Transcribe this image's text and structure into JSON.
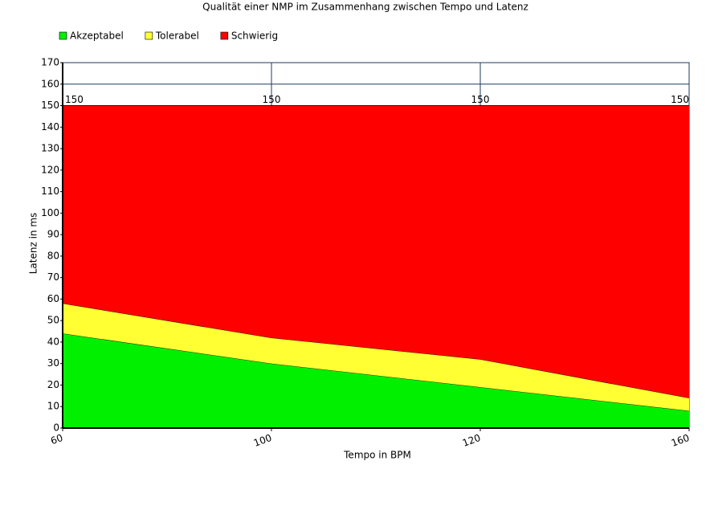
{
  "chart_data": {
    "type": "stacked_area",
    "title": "Qualität einer NMP im Zusammenhang zwischen Tempo und Latenz",
    "x_label": "Tempo in BPM",
    "y_label": "Latenz in ms",
    "categories": [
      "60",
      "100",
      "120",
      "160"
    ],
    "series": [
      {
        "name": "Akzeptabel",
        "color": "#00f000",
        "values": [
          44,
          30,
          19,
          8
        ]
      },
      {
        "name": "Tolerabel",
        "color": "#ffff33",
        "values": [
          14,
          12,
          13,
          6
        ]
      },
      {
        "name": "Schwierig",
        "color": "#ff0000",
        "values": [
          92,
          108,
          118,
          136
        ]
      }
    ],
    "totals": [
      150,
      150,
      150,
      150
    ],
    "ylim": [
      0,
      170
    ],
    "yticks": [
      0,
      10,
      20,
      30,
      40,
      50,
      60,
      70,
      80,
      90,
      100,
      110,
      120,
      130,
      140,
      150,
      160,
      170
    ],
    "grid": true,
    "legend": "top-left"
  }
}
